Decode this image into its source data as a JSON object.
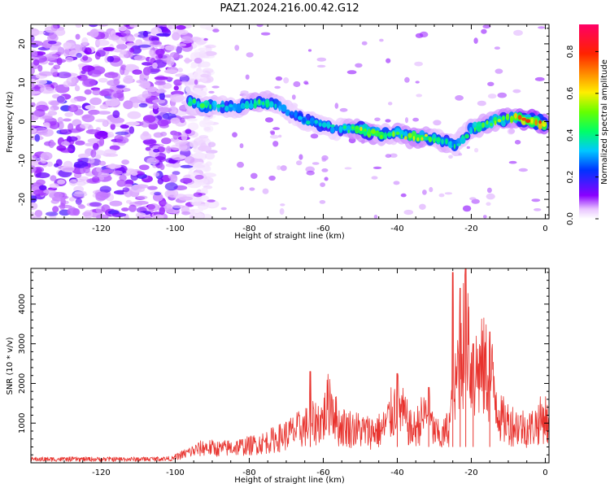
{
  "figure": {
    "title": "PAZ1.2024.216.00.42.G12"
  },
  "chart_data": [
    {
      "type": "heatmap",
      "id": "spectrogram",
      "xlabel": "Height of straight line (km)",
      "ylabel": "Frequency (Hz)",
      "xlim": [
        -139,
        1
      ],
      "ylim": [
        -25,
        25
      ],
      "xticks": [
        -120,
        -100,
        -80,
        -60,
        -40,
        -20,
        0
      ],
      "yticks": [
        -20,
        -10,
        0,
        10,
        20
      ],
      "colorbar": {
        "label": "Normalized spectral amplitude",
        "range": [
          0.0,
          0.93
        ],
        "ticks": [
          0.0,
          0.2,
          0.4,
          0.6,
          0.8
        ],
        "colormap": "gist_rainbow-like: white/lavender (0) → purple → blue → cyan → green → yellow → orange → red → magenta (max)"
      },
      "signal_track": {
        "description": "frequency of the strongest spectral ridge vs height",
        "x": [
          -96,
          -92,
          -88,
          -84,
          -80,
          -76,
          -72,
          -68,
          -64,
          -60,
          -56,
          -52,
          -48,
          -44,
          -40,
          -36,
          -32,
          -28,
          -24,
          -20,
          -16,
          -12,
          -8,
          -4,
          0
        ],
        "freq": [
          5,
          4,
          4,
          3.5,
          4.5,
          5,
          4,
          2,
          0,
          -1,
          -2,
          -2,
          -2.5,
          -3.5,
          -3,
          -4,
          -4,
          -5,
          -6,
          -2,
          -0.5,
          0.5,
          1,
          0.5,
          -1
        ],
        "peak_amplitude": [
          0.4,
          0.45,
          0.4,
          0.35,
          0.45,
          0.5,
          0.4,
          0.3,
          0.35,
          0.4,
          0.35,
          0.55,
          0.6,
          0.5,
          0.5,
          0.55,
          0.6,
          0.45,
          0.4,
          0.45,
          0.5,
          0.6,
          0.7,
          0.75,
          0.8
        ]
      },
      "background_noise": {
        "x_range": [
          -139,
          -96
        ],
        "level": "high (purple/violet speckle across all frequencies)"
      }
    },
    {
      "type": "line",
      "id": "snr",
      "xlabel": "Height of straight line (km)",
      "ylabel": "SNR (10 * v/v)",
      "xlim": [
        -139,
        1
      ],
      "ylim": [
        0,
        4900
      ],
      "xticks": [
        -120,
        -100,
        -80,
        -60,
        -40,
        -20,
        0
      ],
      "yticks": [
        1000,
        2000,
        3000,
        4000
      ],
      "color": "#e8332e",
      "envelope": {
        "x": [
          -139,
          -130,
          -120,
          -110,
          -100,
          -96,
          -92,
          -88,
          -84,
          -80,
          -76,
          -72,
          -68,
          -64,
          -60,
          -58,
          -56,
          -52,
          -48,
          -44,
          -40,
          -36,
          -32,
          -30,
          -28,
          -26,
          -24,
          -23,
          -22,
          -21,
          -20,
          -18,
          -16,
          -14,
          -12,
          -8,
          -4,
          -2,
          0,
          1
        ],
        "y": [
          150,
          150,
          150,
          150,
          180,
          350,
          500,
          450,
          500,
          550,
          650,
          800,
          1000,
          1200,
          1400,
          2100,
          1200,
          1100,
          1000,
          1050,
          1900,
          1000,
          1600,
          1000,
          800,
          1200,
          2500,
          4300,
          3800,
          4800,
          2800,
          3000,
          3000,
          2500,
          1400,
          1200,
          1100,
          1300,
          1500,
          1100
        ]
      },
      "peaks": [
        {
          "x": -63.5,
          "y": 2300
        },
        {
          "x": -40,
          "y": 2250
        },
        {
          "x": -31.5,
          "y": 1900
        },
        {
          "x": -25,
          "y": 4800
        },
        {
          "x": -23,
          "y": 4400
        },
        {
          "x": -21.5,
          "y": 4900
        },
        {
          "x": -19.5,
          "y": 3000
        },
        {
          "x": -15,
          "y": 3300
        }
      ]
    }
  ]
}
